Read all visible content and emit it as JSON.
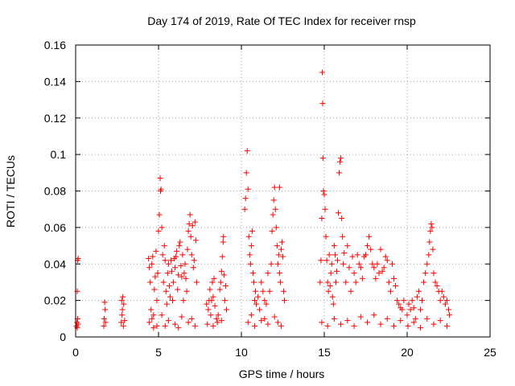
{
  "chart_data": {
    "type": "scatter",
    "title": "Day 174 of 2019, Rate Of TEC Index for receiver rnsp",
    "xlabel": "GPS time / hours",
    "ylabel": "ROTI / TECUs",
    "xlim": [
      0,
      25
    ],
    "ylim": [
      0,
      0.16
    ],
    "xticks": [
      0,
      5,
      10,
      15,
      20,
      25
    ],
    "xtick_labels": [
      "0",
      "5",
      "10",
      "15",
      "20",
      "25"
    ],
    "yticks": [
      0,
      0.02,
      0.04,
      0.06,
      0.08,
      0.1,
      0.12,
      0.14,
      0.16
    ],
    "ytick_labels": [
      "0",
      "0.02",
      "0.04",
      "0.06",
      "0.08",
      "0.1",
      "0.12",
      "0.14",
      "0.16"
    ],
    "grid": true,
    "marker": "+",
    "marker_color": "#ff0000",
    "series": [
      {
        "name": "ROTI",
        "points": [
          [
            0.05,
            0.006
          ],
          [
            0.08,
            0.008
          ],
          [
            0.1,
            0.005
          ],
          [
            0.12,
            0.01
          ],
          [
            0.15,
            0.043
          ],
          [
            0.12,
            0.042
          ],
          [
            0.1,
            0.025
          ],
          [
            0.15,
            0.007
          ],
          [
            1.7,
            0.006
          ],
          [
            1.72,
            0.01
          ],
          [
            1.75,
            0.019
          ],
          [
            1.78,
            0.015
          ],
          [
            1.8,
            0.008
          ],
          [
            2.75,
            0.008
          ],
          [
            2.8,
            0.012
          ],
          [
            2.85,
            0.022
          ],
          [
            2.9,
            0.018
          ],
          [
            2.95,
            0.009
          ],
          [
            2.88,
            0.006
          ],
          [
            2.82,
            0.015
          ],
          [
            2.78,
            0.02
          ],
          [
            4.4,
            0.043
          ],
          [
            4.45,
            0.038
          ],
          [
            4.5,
            0.03
          ],
          [
            4.55,
            0.015
          ],
          [
            4.6,
            0.04
          ],
          [
            4.65,
            0.044
          ],
          [
            4.7,
            0.012
          ],
          [
            4.75,
            0.026
          ],
          [
            4.8,
            0.033
          ],
          [
            4.85,
            0.047
          ],
          [
            4.9,
            0.02
          ],
          [
            4.95,
            0.035
          ],
          [
            5.0,
            0.058
          ],
          [
            5.05,
            0.067
          ],
          [
            5.1,
            0.087
          ],
          [
            5.12,
            0.08
          ],
          [
            5.15,
            0.081
          ],
          [
            5.2,
            0.06
          ],
          [
            5.25,
            0.045
          ],
          [
            5.3,
            0.03
          ],
          [
            5.35,
            0.05
          ],
          [
            5.4,
            0.042
          ],
          [
            5.45,
            0.025
          ],
          [
            5.5,
            0.018
          ],
          [
            5.55,
            0.035
          ],
          [
            5.6,
            0.04
          ],
          [
            5.65,
            0.028
          ],
          [
            5.7,
            0.022
          ],
          [
            5.75,
            0.042
          ],
          [
            5.8,
            0.036
          ],
          [
            5.85,
            0.02
          ],
          [
            5.9,
            0.03
          ],
          [
            5.95,
            0.043
          ],
          [
            6.0,
            0.038
          ],
          [
            6.05,
            0.044
          ],
          [
            6.1,
            0.047
          ],
          [
            6.15,
            0.026
          ],
          [
            6.2,
            0.034
          ],
          [
            6.25,
            0.05
          ],
          [
            6.3,
            0.052
          ],
          [
            6.35,
            0.039
          ],
          [
            6.4,
            0.033
          ],
          [
            6.45,
            0.045
          ],
          [
            6.5,
            0.02
          ],
          [
            6.55,
            0.035
          ],
          [
            6.6,
            0.04
          ],
          [
            6.65,
            0.032
          ],
          [
            6.7,
            0.025
          ],
          [
            6.75,
            0.048
          ],
          [
            6.8,
            0.058
          ],
          [
            6.85,
            0.062
          ],
          [
            6.9,
            0.067
          ],
          [
            6.95,
            0.055
          ],
          [
            7.0,
            0.045
          ],
          [
            7.05,
            0.061
          ],
          [
            7.1,
            0.038
          ],
          [
            7.15,
            0.042
          ],
          [
            7.2,
            0.063
          ],
          [
            7.25,
            0.053
          ],
          [
            7.3,
            0.03
          ],
          [
            4.45,
            0.008
          ],
          [
            4.6,
            0.01
          ],
          [
            4.9,
            0.006
          ],
          [
            5.2,
            0.012
          ],
          [
            5.6,
            0.009
          ],
          [
            6.0,
            0.007
          ],
          [
            6.4,
            0.011
          ],
          [
            6.8,
            0.008
          ],
          [
            7.2,
            0.006
          ],
          [
            4.7,
            0.005
          ],
          [
            5.4,
            0.006
          ],
          [
            6.2,
            0.005
          ],
          [
            7.0,
            0.01
          ],
          [
            7.9,
            0.018
          ],
          [
            8.0,
            0.015
          ],
          [
            8.05,
            0.02
          ],
          [
            8.1,
            0.026
          ],
          [
            8.15,
            0.012
          ],
          [
            8.2,
            0.02
          ],
          [
            8.25,
            0.03
          ],
          [
            8.3,
            0.022
          ],
          [
            8.35,
            0.032
          ],
          [
            8.4,
            0.017
          ],
          [
            8.5,
            0.01
          ],
          [
            8.55,
            0.008
          ],
          [
            8.6,
            0.012
          ],
          [
            8.7,
            0.026
          ],
          [
            8.75,
            0.03
          ],
          [
            8.8,
            0.036
          ],
          [
            8.85,
            0.044
          ],
          [
            8.9,
            0.052
          ],
          [
            8.92,
            0.055
          ],
          [
            8.95,
            0.034
          ],
          [
            9.0,
            0.02
          ],
          [
            9.05,
            0.028
          ],
          [
            9.1,
            0.015
          ],
          [
            7.95,
            0.007
          ],
          [
            8.3,
            0.006
          ],
          [
            8.8,
            0.009
          ],
          [
            10.2,
            0.07
          ],
          [
            10.25,
            0.076
          ],
          [
            10.3,
            0.09
          ],
          [
            10.35,
            0.102
          ],
          [
            10.4,
            0.081
          ],
          [
            10.45,
            0.055
          ],
          [
            10.5,
            0.045
          ],
          [
            10.55,
            0.04
          ],
          [
            10.6,
            0.05
          ],
          [
            10.65,
            0.058
          ],
          [
            10.7,
            0.035
          ],
          [
            10.75,
            0.03
          ],
          [
            10.8,
            0.02
          ],
          [
            10.85,
            0.025
          ],
          [
            10.9,
            0.018
          ],
          [
            11.0,
            0.022
          ],
          [
            11.1,
            0.015
          ],
          [
            11.2,
            0.03
          ],
          [
            11.3,
            0.025
          ],
          [
            11.4,
            0.02
          ],
          [
            11.5,
            0.018
          ],
          [
            11.6,
            0.035
          ],
          [
            11.7,
            0.025
          ],
          [
            11.8,
            0.04
          ],
          [
            11.85,
            0.058
          ],
          [
            11.9,
            0.067
          ],
          [
            11.95,
            0.075
          ],
          [
            12.0,
            0.082
          ],
          [
            12.05,
            0.07
          ],
          [
            12.1,
            0.06
          ],
          [
            12.15,
            0.05
          ],
          [
            12.2,
            0.04
          ],
          [
            12.25,
            0.045
          ],
          [
            12.3,
            0.035
          ],
          [
            12.35,
            0.03
          ],
          [
            12.4,
            0.048
          ],
          [
            12.45,
            0.052
          ],
          [
            12.5,
            0.044
          ],
          [
            12.55,
            0.025
          ],
          [
            12.6,
            0.02
          ],
          [
            12.3,
            0.082
          ],
          [
            10.4,
            0.008
          ],
          [
            10.8,
            0.006
          ],
          [
            11.2,
            0.009
          ],
          [
            11.6,
            0.007
          ],
          [
            12.0,
            0.011
          ],
          [
            12.4,
            0.006
          ],
          [
            10.6,
            0.012
          ],
          [
            11.4,
            0.01
          ],
          [
            12.2,
            0.008
          ],
          [
            14.75,
            0.03
          ],
          [
            14.8,
            0.042
          ],
          [
            14.85,
            0.065
          ],
          [
            14.88,
            0.145
          ],
          [
            14.9,
            0.128
          ],
          [
            14.92,
            0.098
          ],
          [
            14.95,
            0.08
          ],
          [
            15.0,
            0.078
          ],
          [
            15.05,
            0.07
          ],
          [
            15.1,
            0.055
          ],
          [
            15.15,
            0.042
          ],
          [
            15.2,
            0.03
          ],
          [
            15.25,
            0.025
          ],
          [
            15.3,
            0.045
          ],
          [
            15.35,
            0.028
          ],
          [
            15.4,
            0.035
          ],
          [
            15.45,
            0.04
          ],
          [
            15.5,
            0.022
          ],
          [
            15.55,
            0.018
          ],
          [
            15.6,
            0.05
          ],
          [
            15.65,
            0.045
          ],
          [
            15.7,
            0.03
          ],
          [
            15.75,
            0.036
          ],
          [
            15.8,
            0.042
          ],
          [
            15.85,
            0.068
          ],
          [
            15.9,
            0.09
          ],
          [
            15.95,
            0.096
          ],
          [
            16.0,
            0.098
          ],
          [
            16.05,
            0.065
          ],
          [
            16.1,
            0.055
          ],
          [
            16.15,
            0.04
          ],
          [
            16.2,
            0.046
          ],
          [
            16.3,
            0.03
          ],
          [
            16.4,
            0.05
          ],
          [
            16.5,
            0.038
          ],
          [
            16.6,
            0.025
          ],
          [
            16.7,
            0.044
          ],
          [
            16.8,
            0.035
          ],
          [
            16.9,
            0.03
          ],
          [
            17.0,
            0.045
          ],
          [
            17.1,
            0.04
          ],
          [
            17.2,
            0.038
          ],
          [
            17.3,
            0.032
          ],
          [
            17.4,
            0.044
          ],
          [
            17.5,
            0.045
          ],
          [
            17.6,
            0.05
          ],
          [
            17.7,
            0.055
          ],
          [
            17.8,
            0.048
          ],
          [
            17.9,
            0.04
          ],
          [
            18.0,
            0.038
          ],
          [
            18.1,
            0.032
          ],
          [
            18.2,
            0.04
          ],
          [
            18.3,
            0.035
          ],
          [
            18.4,
            0.048
          ],
          [
            18.5,
            0.036
          ],
          [
            18.6,
            0.038
          ],
          [
            18.7,
            0.044
          ],
          [
            18.8,
            0.042
          ],
          [
            18.9,
            0.03
          ],
          [
            19.0,
            0.025
          ],
          [
            19.1,
            0.04
          ],
          [
            19.2,
            0.032
          ],
          [
            19.3,
            0.028
          ],
          [
            19.4,
            0.02
          ],
          [
            19.5,
            0.018
          ],
          [
            19.6,
            0.016
          ],
          [
            19.7,
            0.015
          ],
          [
            19.8,
            0.02
          ],
          [
            14.85,
            0.008
          ],
          [
            15.2,
            0.006
          ],
          [
            15.6,
            0.01
          ],
          [
            16.0,
            0.007
          ],
          [
            16.4,
            0.009
          ],
          [
            16.8,
            0.006
          ],
          [
            17.2,
            0.011
          ],
          [
            17.6,
            0.008
          ],
          [
            18.0,
            0.012
          ],
          [
            18.4,
            0.007
          ],
          [
            18.8,
            0.01
          ],
          [
            19.2,
            0.006
          ],
          [
            19.6,
            0.009
          ],
          [
            20.0,
            0.012
          ],
          [
            20.1,
            0.018
          ],
          [
            20.2,
            0.015
          ],
          [
            20.3,
            0.02
          ],
          [
            20.4,
            0.016
          ],
          [
            20.5,
            0.01
          ],
          [
            20.6,
            0.022
          ],
          [
            20.7,
            0.025
          ],
          [
            20.8,
            0.015
          ],
          [
            20.9,
            0.02
          ],
          [
            21.0,
            0.03
          ],
          [
            21.1,
            0.035
          ],
          [
            21.2,
            0.04
          ],
          [
            21.3,
            0.045
          ],
          [
            21.35,
            0.052
          ],
          [
            21.4,
            0.058
          ],
          [
            21.45,
            0.062
          ],
          [
            21.5,
            0.06
          ],
          [
            21.55,
            0.048
          ],
          [
            21.6,
            0.035
          ],
          [
            21.7,
            0.03
          ],
          [
            21.8,
            0.028
          ],
          [
            21.9,
            0.025
          ],
          [
            22.0,
            0.02
          ],
          [
            22.1,
            0.025
          ],
          [
            22.2,
            0.022
          ],
          [
            22.3,
            0.018
          ],
          [
            22.4,
            0.02
          ],
          [
            22.5,
            0.015
          ],
          [
            22.55,
            0.012
          ],
          [
            20.05,
            0.006
          ],
          [
            20.4,
            0.008
          ],
          [
            20.8,
            0.005
          ],
          [
            21.2,
            0.01
          ],
          [
            21.6,
            0.007
          ],
          [
            22.0,
            0.009
          ],
          [
            22.4,
            0.006
          ]
        ]
      }
    ]
  }
}
